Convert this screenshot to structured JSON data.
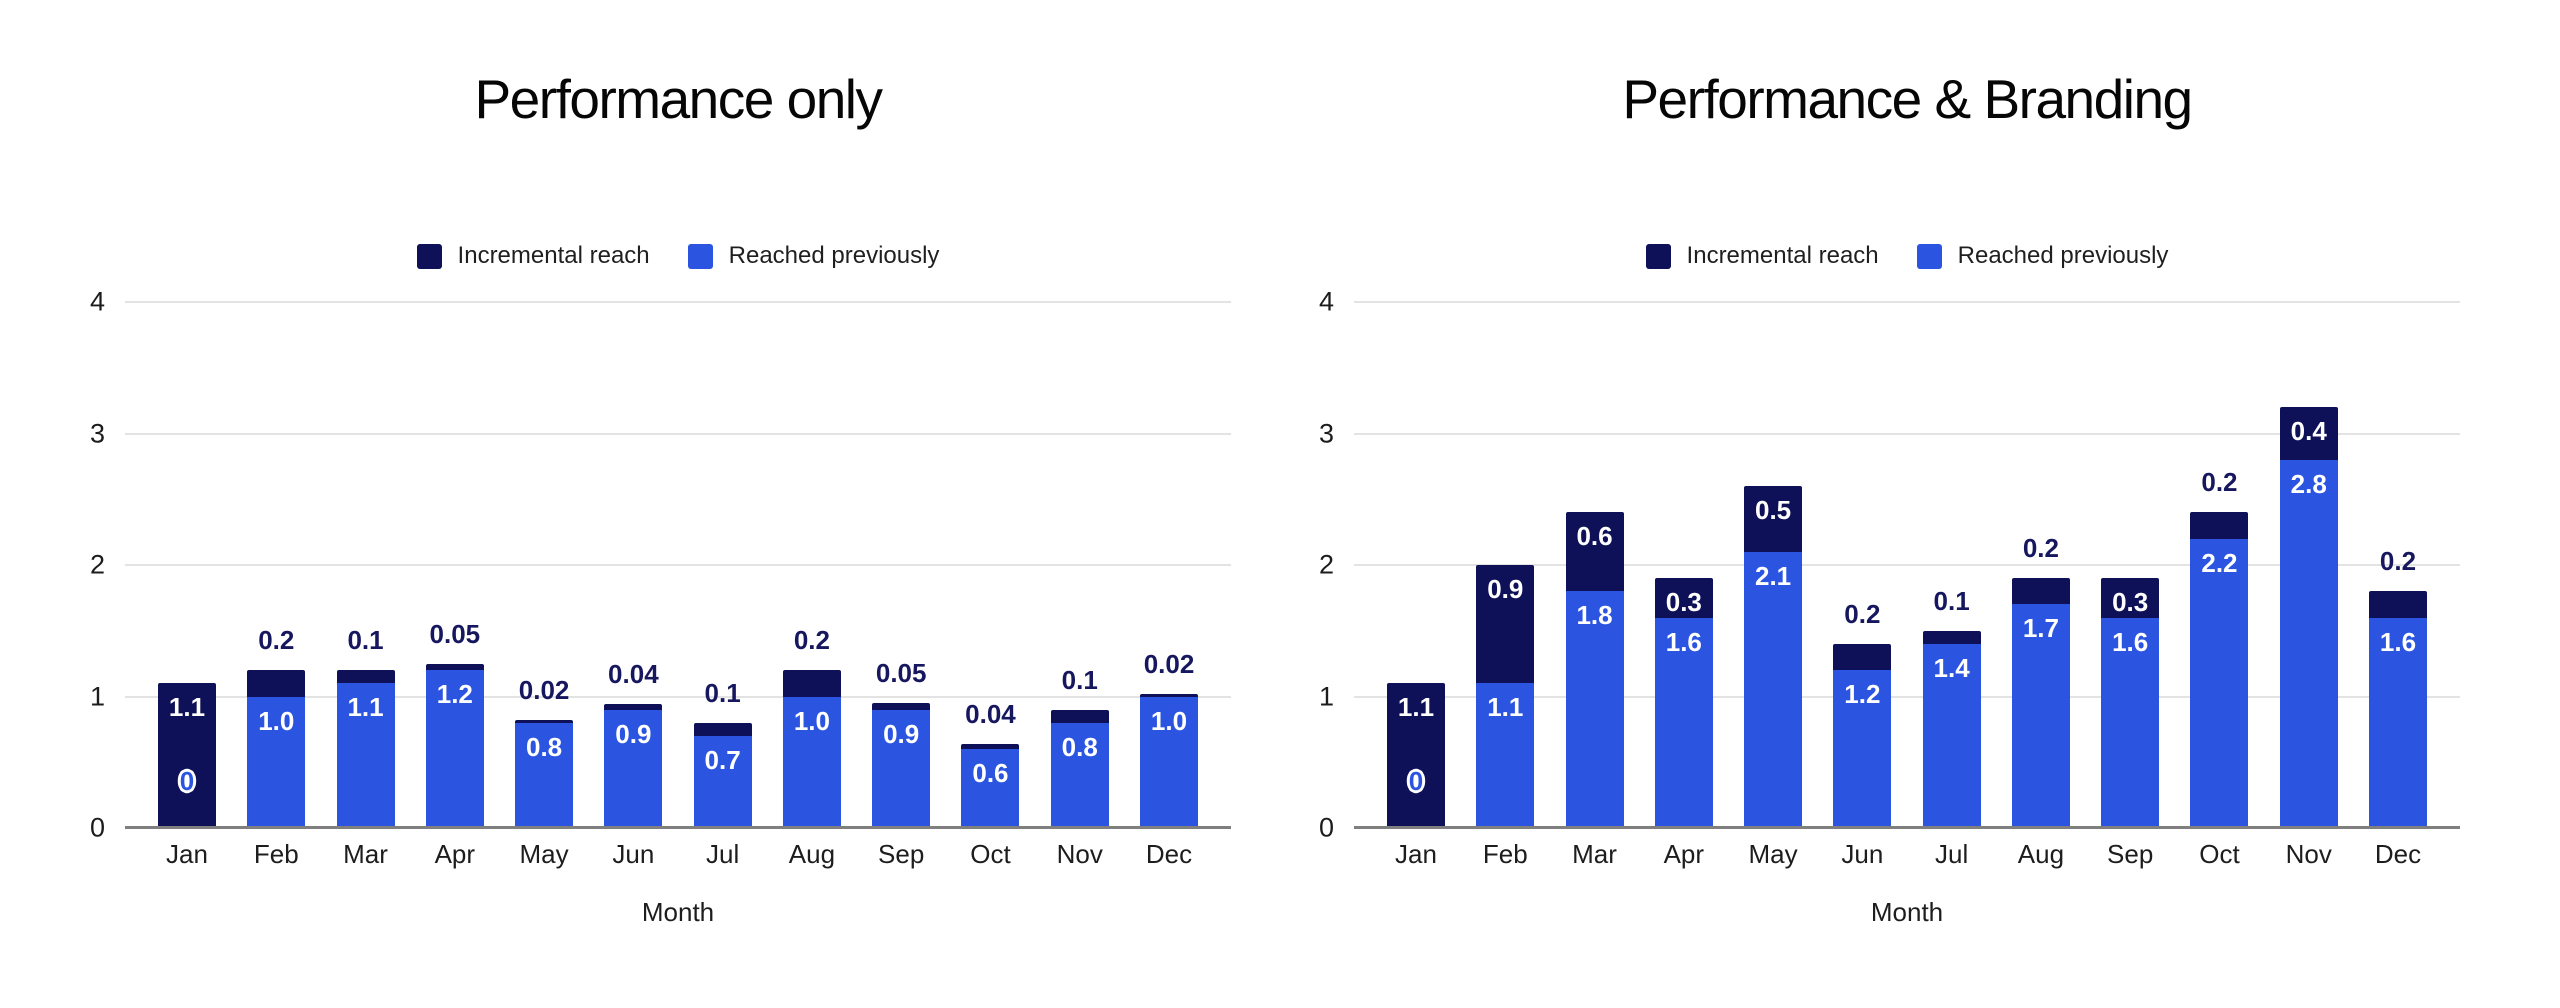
{
  "page": {
    "background": "#ffffff"
  },
  "colors": {
    "incremental_reach": "#0e1157",
    "reached_previously": "#2b55e1",
    "gridline": "#e3e3e3",
    "baseline": "#7f7f7f",
    "annotation_above": "#16175e",
    "annotation_inside": "#ffffff",
    "zero_label_text": "#2b55e1",
    "axis_text": "#1c1c1c",
    "title_text": "#060606"
  },
  "chart_data": [
    {
      "type": "bar",
      "stacked": true,
      "title": "Performance only",
      "xlabel": "Month",
      "ylabel": "",
      "ylim": [
        0,
        4
      ],
      "yticks": [
        "0",
        "1",
        "2",
        "3",
        "4"
      ],
      "grid": true,
      "legend_position": "top-center",
      "categories": [
        "Jan",
        "Feb",
        "Mar",
        "Apr",
        "May",
        "Jun",
        "Jul",
        "Aug",
        "Sep",
        "Oct",
        "Nov",
        "Dec"
      ],
      "legend": [
        {
          "label": "Incremental reach",
          "series": 1
        },
        {
          "label": "Reached previously",
          "series": 0
        }
      ],
      "series": [
        {
          "name": "Reached previously",
          "color": "#2b55e1",
          "values": [
            0,
            1.0,
            1.1,
            1.2,
            0.8,
            0.9,
            0.7,
            1.0,
            0.9,
            0.6,
            0.8,
            1.0
          ],
          "labels": [
            "0",
            "1.0",
            "1.1",
            "1.2",
            "0.8",
            "0.9",
            "0.7",
            "1.0",
            "0.9",
            "0.6",
            "0.8",
            "1.0"
          ]
        },
        {
          "name": "Incremental reach",
          "color": "#0e1157",
          "values": [
            1.1,
            0.2,
            0.1,
            0.05,
            0.02,
            0.04,
            0.1,
            0.2,
            0.05,
            0.04,
            0.1,
            0.02
          ],
          "labels": [
            "1.1",
            "0.2",
            "0.1",
            "0.05",
            "0.02",
            "0.04",
            "0.1",
            "0.2",
            "0.05",
            "0.04",
            "0.1",
            "0.02"
          ]
        }
      ]
    },
    {
      "type": "bar",
      "stacked": true,
      "title": "Performance & Branding",
      "xlabel": "Month",
      "ylabel": "",
      "ylim": [
        0,
        4
      ],
      "yticks": [
        "0",
        "1",
        "2",
        "3",
        "4"
      ],
      "grid": true,
      "legend_position": "top-center",
      "categories": [
        "Jan",
        "Feb",
        "Mar",
        "Apr",
        "May",
        "Jun",
        "Jul",
        "Aug",
        "Sep",
        "Oct",
        "Nov",
        "Dec"
      ],
      "legend": [
        {
          "label": "Incremental reach",
          "series": 1
        },
        {
          "label": "Reached previously",
          "series": 0
        }
      ],
      "series": [
        {
          "name": "Reached previously",
          "color": "#2b55e1",
          "values": [
            0,
            1.1,
            1.8,
            1.6,
            2.1,
            1.2,
            1.4,
            1.7,
            1.6,
            2.2,
            2.8,
            1.6
          ],
          "labels": [
            "0",
            "1.1",
            "1.8",
            "1.6",
            "2.1",
            "1.2",
            "1.4",
            "1.7",
            "1.6",
            "2.2",
            "2.8",
            "1.6"
          ]
        },
        {
          "name": "Incremental reach",
          "color": "#0e1157",
          "values": [
            1.1,
            0.9,
            0.6,
            0.3,
            0.5,
            0.2,
            0.1,
            0.2,
            0.3,
            0.2,
            0.4,
            0.2
          ],
          "labels": [
            "1.1",
            "0.9",
            "0.6",
            "0.3",
            "0.5",
            "0.2",
            "0.1",
            "0.2",
            "0.3",
            "0.2",
            "0.4",
            "0.2"
          ]
        }
      ]
    }
  ]
}
